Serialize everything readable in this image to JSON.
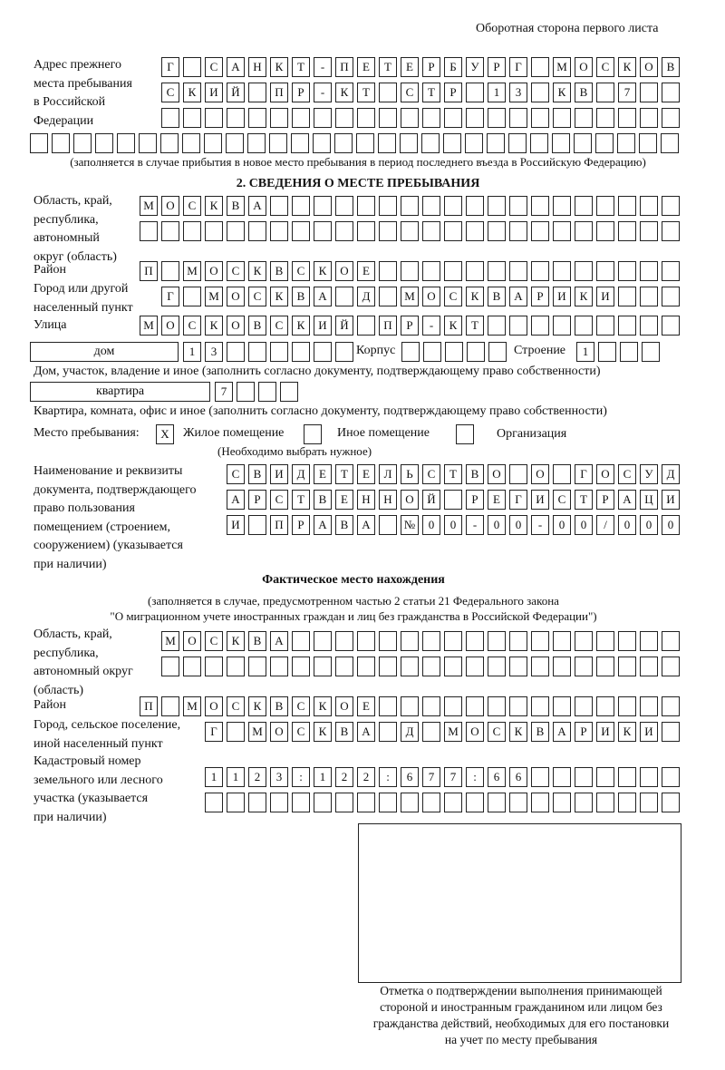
{
  "header": {
    "page_side": "Оборотная сторона первого листа"
  },
  "previous_address": {
    "label": [
      "Адрес прежнего",
      "места пребывания",
      "в Российской",
      "Федерации"
    ],
    "rows": [
      [
        "Г",
        "",
        "С",
        "А",
        "Н",
        "К",
        "Т",
        "-",
        "П",
        "Е",
        "Т",
        "Е",
        "Р",
        "Б",
        "У",
        "Р",
        "Г",
        "",
        "М",
        "О",
        "С",
        "К",
        "О",
        "В"
      ],
      [
        "С",
        "К",
        "И",
        "Й",
        "",
        "П",
        "Р",
        "-",
        "К",
        "Т",
        "",
        "С",
        "Т",
        "Р",
        "",
        "1",
        "3",
        "",
        "К",
        "В",
        "",
        "7",
        "",
        ""
      ],
      [
        "",
        "",
        "",
        "",
        "",
        "",
        "",
        "",
        "",
        "",
        "",
        "",
        "",
        "",
        "",
        "",
        "",
        "",
        "",
        "",
        "",
        "",
        "",
        ""
      ],
      [
        "",
        "",
        "",
        "",
        "",
        "",
        "",
        "",
        "",
        "",
        "",
        "",
        "",
        "",
        "",
        "",
        "",
        "",
        "",
        "",
        "",
        "",
        "",
        "",
        "",
        "",
        "",
        "",
        "",
        ""
      ]
    ],
    "note": "(заполняется в случае прибытия в новое место пребывания в период последнего въезда в Российскую Федерацию)"
  },
  "section2": {
    "title": "2. СВЕДЕНИЯ О МЕСТЕ ПРЕБЫВАНИЯ",
    "region_label": [
      "Область, край,",
      "республика,",
      "автономный",
      "округ (область)"
    ],
    "region_rows": [
      [
        "М",
        "О",
        "С",
        "К",
        "В",
        "А",
        "",
        "",
        "",
        "",
        "",
        "",
        "",
        "",
        "",
        "",
        "",
        "",
        "",
        "",
        "",
        "",
        "",
        "",
        ""
      ],
      [
        "",
        "",
        "",
        "",
        "",
        "",
        "",
        "",
        "",
        "",
        "",
        "",
        "",
        "",
        "",
        "",
        "",
        "",
        "",
        "",
        "",
        "",
        "",
        "",
        ""
      ]
    ],
    "district_label": "Район",
    "district": [
      "П",
      "",
      "М",
      "О",
      "С",
      "К",
      "В",
      "С",
      "К",
      "О",
      "Е",
      "",
      "",
      "",
      "",
      "",
      "",
      "",
      "",
      "",
      "",
      "",
      "",
      "",
      ""
    ],
    "city_label": [
      "Город или другой",
      "населенный пункт"
    ],
    "city": [
      "Г",
      "",
      "М",
      "О",
      "С",
      "К",
      "В",
      "А",
      "",
      "Д",
      "",
      "М",
      "О",
      "С",
      "К",
      "В",
      "А",
      "Р",
      "И",
      "К",
      "И",
      "",
      "",
      ""
    ],
    "street_label": "Улица",
    "street": [
      "М",
      "О",
      "С",
      "К",
      "О",
      "В",
      "С",
      "К",
      "И",
      "Й",
      "",
      "П",
      "Р",
      "-",
      "К",
      "Т",
      "",
      "",
      "",
      "",
      "",
      "",
      "",
      "",
      ""
    ],
    "house_type": "дом",
    "house": [
      "1",
      "3",
      "",
      "",
      "",
      "",
      "",
      ""
    ],
    "korpus_label": "Корпус",
    "korpus": [
      "",
      "",
      "",
      "",
      ""
    ],
    "building_label": "Строение",
    "building": [
      "1",
      "",
      "",
      ""
    ],
    "house_note": "Дом, участок, владение и иное (заполнить согласно документу, подтверждающему право собственности)",
    "apt_type": "квартира",
    "apt": [
      "7",
      "",
      "",
      ""
    ],
    "apt_note": "Квартира, комната, офис и иное (заполнить согласно документу, подтверждающему право собственности)",
    "stay_label": "Место пребывания:",
    "stay_options": [
      {
        "label": "Жилое помещение",
        "mark": "X"
      },
      {
        "label": "Иное помещение",
        "mark": ""
      },
      {
        "label": "Организация",
        "mark": ""
      }
    ],
    "stay_note": "(Необходимо выбрать нужное)",
    "doc_label": [
      "Наименование и реквизиты",
      "документа, подтверждающего",
      "право пользования",
      "помещением (строением,",
      "сооружением) (указывается",
      "при наличии)"
    ],
    "doc_rows": [
      [
        "С",
        "В",
        "И",
        "Д",
        "Е",
        "Т",
        "Е",
        "Л",
        "Ь",
        "С",
        "Т",
        "В",
        "О",
        "",
        "О",
        "",
        "Г",
        "О",
        "С",
        "У",
        "Д"
      ],
      [
        "А",
        "Р",
        "С",
        "Т",
        "В",
        "Е",
        "Н",
        "Н",
        "О",
        "Й",
        "",
        "Р",
        "Е",
        "Г",
        "И",
        "С",
        "Т",
        "Р",
        "А",
        "Ц",
        "И"
      ],
      [
        "И",
        "",
        "П",
        "Р",
        "А",
        "В",
        "А",
        "",
        "№",
        "0",
        "0",
        "-",
        "0",
        "0",
        "-",
        "0",
        "0",
        "/",
        "0",
        "0",
        "0"
      ]
    ]
  },
  "actual": {
    "title": "Фактическое место нахождения",
    "note": [
      "(заполняется в случае, предусмотренном частью 2 статьи 21 Федерального закона",
      "\"О миграционном учете иностранных граждан и лиц без гражданства в Российской Федерации\")"
    ],
    "region_label": [
      "Область, край,",
      "республика,",
      "автономный округ",
      "(область)"
    ],
    "region_rows": [
      [
        "М",
        "О",
        "С",
        "К",
        "В",
        "А",
        "",
        "",
        "",
        "",
        "",
        "",
        "",
        "",
        "",
        "",
        "",
        "",
        "",
        "",
        "",
        "",
        "",
        ""
      ],
      [
        "",
        "",
        "",
        "",
        "",
        "",
        "",
        "",
        "",
        "",
        "",
        "",
        "",
        "",
        "",
        "",
        "",
        "",
        "",
        "",
        "",
        "",
        "",
        ""
      ]
    ],
    "district_label": "Район",
    "district": [
      "П",
      "",
      "М",
      "О",
      "С",
      "К",
      "В",
      "С",
      "К",
      "О",
      "Е",
      "",
      "",
      "",
      "",
      "",
      "",
      "",
      "",
      "",
      "",
      "",
      "",
      "",
      ""
    ],
    "city_label": [
      "Город, сельское поселение,",
      "иной населенный пункт"
    ],
    "city": [
      "Г",
      "",
      "М",
      "О",
      "С",
      "К",
      "В",
      "А",
      "",
      "Д",
      "",
      "М",
      "О",
      "С",
      "К",
      "В",
      "А",
      "Р",
      "И",
      "К",
      "И",
      ""
    ],
    "cadastral_label": [
      "Кадастровый номер",
      "земельного или лесного",
      "участка (указывается",
      "при наличии)"
    ],
    "cadastral_rows": [
      [
        "1",
        "1",
        "2",
        "3",
        ":",
        "1",
        "2",
        "2",
        ":",
        "6",
        "7",
        "7",
        ":",
        "6",
        "6",
        "",
        "",
        "",
        "",
        "",
        "",
        ""
      ],
      [
        "",
        "",
        "",
        "",
        "",
        "",
        "",
        "",
        "",
        "",
        "",
        "",
        "",
        "",
        "",
        "",
        "",
        "",
        "",
        "",
        "",
        ""
      ]
    ],
    "stamp_caption": [
      "Отметка о подтверждении выполнения принимающей",
      "стороной и иностранным гражданином или лицом без",
      "гражданства действий, необходимых для его постановки",
      "на учет по месту пребывания"
    ]
  }
}
